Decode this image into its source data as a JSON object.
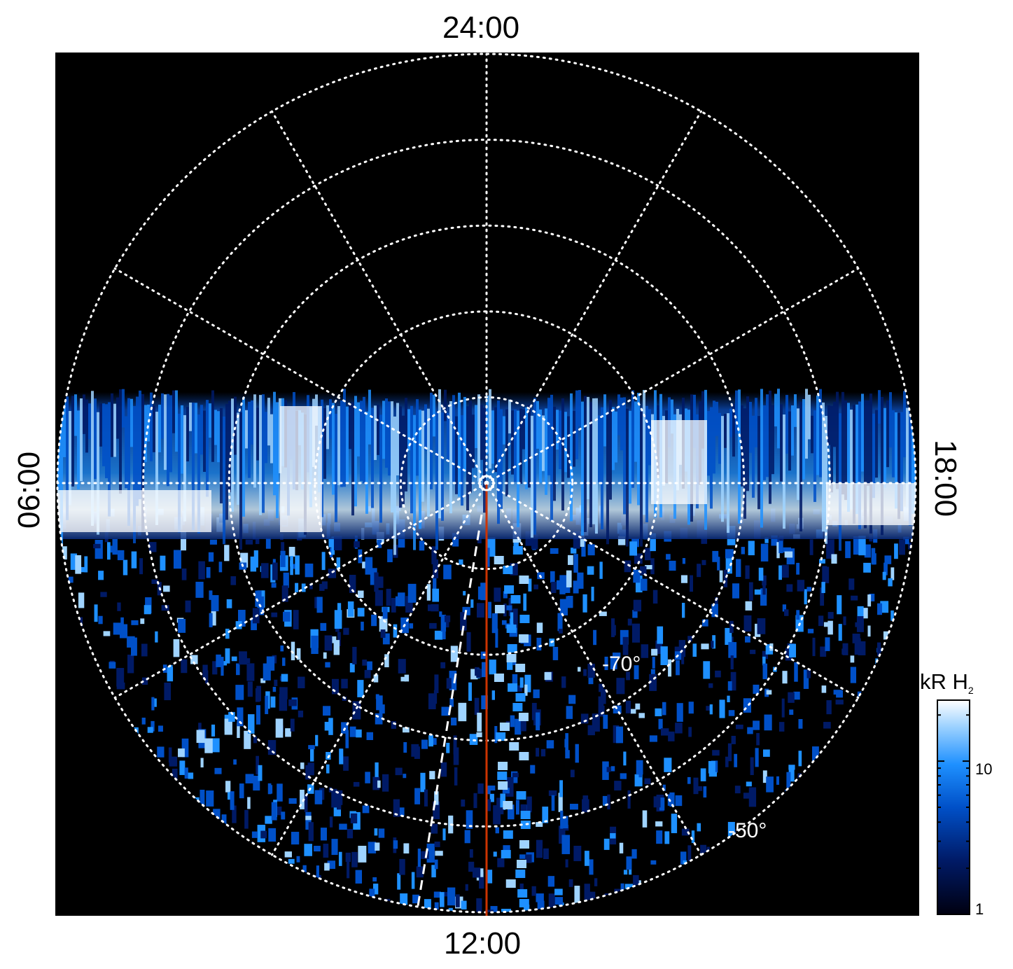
{
  "chart_data": {
    "type": "heatmap",
    "projection": "polar",
    "local_time_labels": {
      "top": "24:00",
      "bottom": "12:00",
      "left": "06:00",
      "right": "18:00"
    },
    "latitude_labels": [
      "-70°",
      "-50°"
    ],
    "latitude_circles_deg": [
      -80,
      -70,
      -60,
      -50,
      -40
    ],
    "colorbar": {
      "title": "kR H",
      "title_subscript": "2",
      "scale": "log",
      "range": [
        1,
        25
      ],
      "tick_labels": [
        "10",
        "1"
      ]
    },
    "colormap": [
      "#000010",
      "#001a66",
      "#0050c8",
      "#1e90ff",
      "#9fd3ff",
      "#ffffff"
    ],
    "marker_colors": {
      "meridian_line": "#cc3300",
      "grid": "#ffffff",
      "background": "#000000"
    }
  }
}
